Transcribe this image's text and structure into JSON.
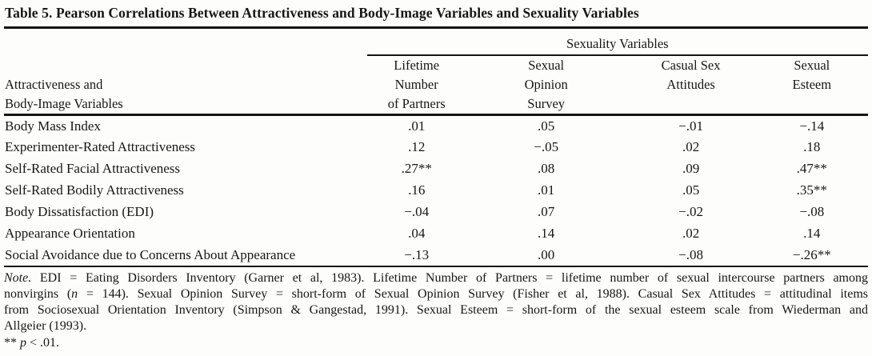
{
  "page": {
    "background": "#fdfdfb",
    "text_color": "#161616",
    "rule_color": "#141414"
  },
  "table": {
    "title": "Table 5. Pearson Correlations Between Attractiveness and Body-Image Variables and Sexuality Variables",
    "spanner": "Sexuality Variables",
    "stub_header_lines": [
      "Attractiveness and",
      "Body-Image Variables"
    ],
    "columns": [
      {
        "lines": [
          "Lifetime",
          "Number",
          "of Partners"
        ]
      },
      {
        "lines": [
          "Sexual",
          "Opinion",
          "Survey"
        ]
      },
      {
        "lines": [
          "Casual Sex",
          "Attitudes"
        ]
      },
      {
        "lines": [
          "Sexual",
          "Esteem"
        ]
      }
    ],
    "rows": [
      {
        "label": "Body Mass Index",
        "values": [
          ".01",
          ".05",
          "−.01",
          "−.14"
        ]
      },
      {
        "label": "Experimenter-Rated Attractiveness",
        "values": [
          ".12",
          "−.05",
          ".02",
          ".18"
        ]
      },
      {
        "label": "Self-Rated Facial Attractiveness",
        "values": [
          ".27**",
          ".08",
          ".09",
          ".47**"
        ]
      },
      {
        "label": "Self-Rated Bodily Attractiveness",
        "values": [
          ".16",
          ".01",
          ".05",
          ".35**"
        ]
      },
      {
        "label": "Body Dissatisfaction (EDI)",
        "values": [
          "−.04",
          ".07",
          "−.02",
          "−.08"
        ]
      },
      {
        "label": "Appearance Orientation",
        "values": [
          ".04",
          ".14",
          ".02",
          ".14"
        ]
      },
      {
        "label": "Social Avoidance due to Concerns About Appearance",
        "values": [
          "−.13",
          ".00",
          "−.08",
          "−.26**"
        ]
      }
    ],
    "note_lines": [
      [
        {
          "text": "Note.",
          "italic": true
        },
        {
          "text": " EDI = Eating Disorders Inventory (Garner et al, 1983). Lifetime Number of Partners = lifetime number of sexual intercourse partners among",
          "italic": false
        }
      ],
      [
        {
          "text": "nonvirgins (",
          "italic": false
        },
        {
          "text": "n",
          "italic": true
        },
        {
          "text": " = 144). Sexual Opinion Survey = short-form of Sexual Opinion Survey (Fisher et al, 1988). Casual Sex Attitudes = attitudinal items",
          "italic": false
        }
      ],
      [
        {
          "text": "from Sociosexual Orientation Inventory (Simpson & Gangestad, 1991). Sexual Esteem = short-form of the sexual esteem scale from Wiederman and",
          "italic": false
        }
      ],
      [
        {
          "text": "Allgeier (1993).",
          "italic": false
        }
      ]
    ],
    "significance_line": [
      {
        "text": "** ",
        "italic": false
      },
      {
        "text": "p",
        "italic": true
      },
      {
        "text": " < .01.",
        "italic": false
      }
    ]
  }
}
